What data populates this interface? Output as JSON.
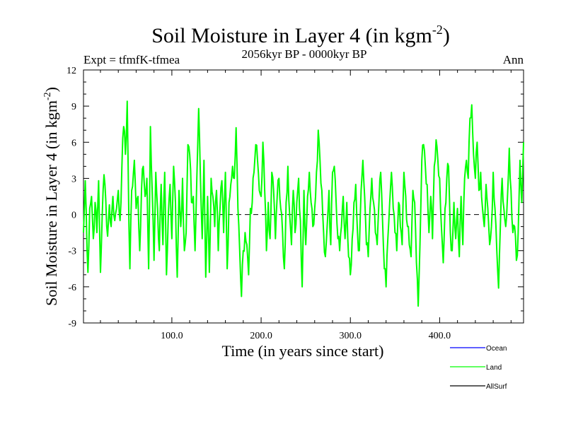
{
  "header": {
    "title": "Soil Moisture in Layer 4 (in kgm",
    "title_sup": "-2",
    "title_close": ")",
    "subtitle": "2056kyr BP - 0000kyr BP",
    "left_label": "Expt = tfmfK-tfmea",
    "right_label": "Ann"
  },
  "legend": {
    "items": [
      {
        "label": "Ocean",
        "color": "#0000ff"
      },
      {
        "label": "Land",
        "color": "#00ff00"
      },
      {
        "label": "AllSurf",
        "color": "#000000"
      }
    ]
  },
  "chart_data": {
    "type": "line",
    "title": "Soil Moisture in Layer 4 (in kgm-2)",
    "xlabel": "Time (in years since start)",
    "ylabel": "Soil Moisture in Layer 4 (in kgm-2)",
    "ylabel_parts": {
      "main": "Soil Moisture in Layer 4 (in kgm",
      "sup": "-2",
      "close": ")"
    },
    "xlim": [
      1,
      494
    ],
    "ylim": [
      -9,
      12
    ],
    "x_ticks": [
      100,
      200,
      300,
      400
    ],
    "x_tick_labels": [
      "100.0",
      "200.0",
      "300.0",
      "400.0"
    ],
    "y_ticks": [
      -9,
      -6,
      -3,
      0,
      3,
      6,
      9,
      12
    ],
    "y_tick_labels": [
      "-9",
      "-6",
      "-3",
      "0",
      "3",
      "6",
      "9",
      "12"
    ],
    "zero_line": true,
    "series": [
      {
        "name": "Land",
        "color": "#00ff00",
        "keypoints": [
          [
            1,
            -1.5
          ],
          [
            3,
            2.8
          ],
          [
            6,
            -4.8
          ],
          [
            8,
            0.5
          ],
          [
            10,
            1.5
          ],
          [
            12,
            -2.0
          ],
          [
            14,
            1.0
          ],
          [
            16,
            -1.5
          ],
          [
            18,
            2.8
          ],
          [
            20,
            -4.8
          ],
          [
            22,
            0.0
          ],
          [
            24,
            3.3
          ],
          [
            26,
            1.2
          ],
          [
            28,
            -1.8
          ],
          [
            30,
            0.8
          ],
          [
            32,
            -1.0
          ],
          [
            34,
            1.5
          ],
          [
            36,
            -0.5
          ],
          [
            38,
            0.5
          ],
          [
            40,
            2.0
          ],
          [
            42,
            -0.5
          ],
          [
            44,
            4.0
          ],
          [
            46,
            7.3
          ],
          [
            48,
            5.0
          ],
          [
            50,
            9.4
          ],
          [
            52,
            -1.0
          ],
          [
            53,
            -4.5
          ],
          [
            55,
            2.0
          ],
          [
            58,
            4.5
          ],
          [
            60,
            0.5
          ],
          [
            62,
            1.5
          ],
          [
            64,
            -3.0
          ],
          [
            66,
            2.0
          ],
          [
            68,
            4.0
          ],
          [
            70,
            1.5
          ],
          [
            72,
            3.0
          ],
          [
            74,
            -4.5
          ],
          [
            76,
            7.3
          ],
          [
            78,
            2.0
          ],
          [
            80,
            -3.8
          ],
          [
            82,
            3.5
          ],
          [
            84,
            0.5
          ],
          [
            86,
            -3.0
          ],
          [
            88,
            2.5
          ],
          [
            90,
            -2.5
          ],
          [
            92,
            3.5
          ],
          [
            94,
            -5.0
          ],
          [
            96,
            0.0
          ],
          [
            98,
            2.5
          ],
          [
            100,
            -2.0
          ],
          [
            102,
            4.0
          ],
          [
            104,
            1.0
          ],
          [
            106,
            -5.2
          ],
          [
            108,
            2.0
          ],
          [
            110,
            -1.0
          ],
          [
            112,
            3.0
          ],
          [
            114,
            -3.0
          ],
          [
            116,
            -1.5
          ],
          [
            118,
            5.8
          ],
          [
            120,
            5.0
          ],
          [
            122,
            1.0
          ],
          [
            124,
            1.5
          ],
          [
            126,
            -3.0
          ],
          [
            128,
            3.0
          ],
          [
            130,
            8.8
          ],
          [
            132,
            3.0
          ],
          [
            134,
            -2.0
          ],
          [
            136,
            4.5
          ],
          [
            138,
            -5.2
          ],
          [
            140,
            1.5
          ],
          [
            142,
            -4.8
          ],
          [
            144,
            3.0
          ],
          [
            146,
            1.5
          ],
          [
            148,
            -1.0
          ],
          [
            150,
            2.0
          ],
          [
            152,
            -3.0
          ],
          [
            154,
            0.5
          ],
          [
            156,
            2.8
          ],
          [
            158,
            -1.5
          ],
          [
            160,
            3.5
          ],
          [
            162,
            -4.5
          ],
          [
            164,
            1.0
          ],
          [
            166,
            2.5
          ],
          [
            168,
            4.0
          ],
          [
            170,
            3.0
          ],
          [
            172,
            7.2
          ],
          [
            174,
            0.5
          ],
          [
            176,
            -3.0
          ],
          [
            178,
            -6.8
          ],
          [
            180,
            -3.0
          ],
          [
            182,
            -1.5
          ],
          [
            184,
            -2.5
          ],
          [
            186,
            -5.0
          ],
          [
            188,
            0.5
          ],
          [
            190,
            1.0
          ],
          [
            192,
            3.5
          ],
          [
            194,
            5.8
          ],
          [
            196,
            4.5
          ],
          [
            198,
            2.0
          ],
          [
            200,
            1.5
          ],
          [
            202,
            6.0
          ],
          [
            204,
            2.0
          ],
          [
            206,
            -3.0
          ],
          [
            208,
            1.0
          ],
          [
            210,
            -2.0
          ],
          [
            212,
            3.5
          ],
          [
            214,
            2.0
          ],
          [
            216,
            -2.0
          ],
          [
            218,
            1.5
          ],
          [
            220,
            3.0
          ],
          [
            222,
            0.5
          ],
          [
            224,
            -1.5
          ],
          [
            226,
            -4.5
          ],
          [
            228,
            1.0
          ],
          [
            230,
            4.0
          ],
          [
            232,
            0.0
          ],
          [
            234,
            -2.5
          ],
          [
            236,
            2.0
          ],
          [
            238,
            -1.5
          ],
          [
            240,
            1.0
          ],
          [
            242,
            3.0
          ],
          [
            244,
            -0.5
          ],
          [
            246,
            -6.0
          ],
          [
            248,
            2.0
          ],
          [
            250,
            -2.5
          ],
          [
            252,
            1.5
          ],
          [
            254,
            3.5
          ],
          [
            256,
            1.0
          ],
          [
            258,
            -1.0
          ],
          [
            260,
            0.5
          ],
          [
            262,
            3.5
          ],
          [
            264,
            7.0
          ],
          [
            266,
            4.5
          ],
          [
            268,
            2.0
          ],
          [
            270,
            -1.5
          ],
          [
            272,
            -3.5
          ],
          [
            274,
            -1.0
          ],
          [
            276,
            2.0
          ],
          [
            278,
            -2.5
          ],
          [
            280,
            3.5
          ],
          [
            282,
            4.0
          ],
          [
            284,
            1.0
          ],
          [
            286,
            -2.0
          ],
          [
            288,
            -3.0
          ],
          [
            290,
            -1.0
          ],
          [
            292,
            1.5
          ],
          [
            294,
            -2.0
          ],
          [
            296,
            1.0
          ],
          [
            298,
            -3.5
          ],
          [
            300,
            -5.0
          ],
          [
            302,
            -2.0
          ],
          [
            304,
            1.0
          ],
          [
            306,
            2.5
          ],
          [
            308,
            -1.5
          ],
          [
            310,
            -3.0
          ],
          [
            312,
            2.0
          ],
          [
            314,
            4.5
          ],
          [
            316,
            1.5
          ],
          [
            318,
            -2.5
          ],
          [
            320,
            -3.5
          ],
          [
            322,
            0.5
          ],
          [
            324,
            3.0
          ],
          [
            326,
            1.0
          ],
          [
            328,
            -1.5
          ],
          [
            330,
            -2.5
          ],
          [
            332,
            1.0
          ],
          [
            334,
            3.5
          ],
          [
            336,
            -0.5
          ],
          [
            338,
            -4.5
          ],
          [
            340,
            -6.0
          ],
          [
            342,
            -2.0
          ],
          [
            344,
            1.0
          ],
          [
            346,
            3.5
          ],
          [
            348,
            0.5
          ],
          [
            350,
            -1.5
          ],
          [
            352,
            -3.0
          ],
          [
            354,
            1.0
          ],
          [
            356,
            -1.0
          ],
          [
            358,
            -2.5
          ],
          [
            360,
            3.5
          ],
          [
            362,
            1.5
          ],
          [
            364,
            -1.0
          ],
          [
            366,
            -2.5
          ],
          [
            368,
            -3.5
          ],
          [
            370,
            2.0
          ],
          [
            372,
            1.0
          ],
          [
            374,
            -4.0
          ],
          [
            376,
            -7.6
          ],
          [
            378,
            -2.5
          ],
          [
            380,
            4.5
          ],
          [
            382,
            5.8
          ],
          [
            384,
            4.0
          ],
          [
            386,
            2.5
          ],
          [
            388,
            -1.5
          ],
          [
            390,
            1.5
          ],
          [
            392,
            -2.0
          ],
          [
            394,
            4.0
          ],
          [
            396,
            6.2
          ],
          [
            398,
            4.5
          ],
          [
            400,
            3.0
          ],
          [
            402,
            -1.0
          ],
          [
            404,
            -4.0
          ],
          [
            406,
            0.5
          ],
          [
            408,
            3.0
          ],
          [
            410,
            4.0
          ],
          [
            412,
            -1.5
          ],
          [
            414,
            -3.0
          ],
          [
            416,
            1.0
          ],
          [
            418,
            -2.0
          ],
          [
            420,
            0.5
          ],
          [
            422,
            -3.5
          ],
          [
            424,
            1.5
          ],
          [
            426,
            -2.5
          ],
          [
            428,
            3.0
          ],
          [
            430,
            4.5
          ],
          [
            432,
            3.0
          ],
          [
            434,
            8.0
          ],
          [
            436,
            9.1
          ],
          [
            438,
            5.0
          ],
          [
            440,
            3.0
          ],
          [
            442,
            6.0
          ],
          [
            444,
            2.0
          ],
          [
            446,
            3.5
          ],
          [
            448,
            0.5
          ],
          [
            450,
            -1.0
          ],
          [
            452,
            2.5
          ],
          [
            454,
            0.5
          ],
          [
            456,
            -2.5
          ],
          [
            458,
            -1.0
          ],
          [
            460,
            3.5
          ],
          [
            462,
            0.5
          ],
          [
            464,
            -3.0
          ],
          [
            466,
            -6.1
          ],
          [
            468,
            -1.0
          ],
          [
            470,
            3.0
          ],
          [
            472,
            0.5
          ],
          [
            474,
            -1.0
          ],
          [
            476,
            1.5
          ],
          [
            478,
            5.5
          ],
          [
            480,
            2.0
          ],
          [
            482,
            -1.5
          ],
          [
            484,
            -1.0
          ],
          [
            486,
            -3.8
          ],
          [
            488,
            -1.5
          ],
          [
            490,
            4.5
          ],
          [
            492,
            1.0
          ],
          [
            494,
            6.0
          ]
        ]
      }
    ]
  }
}
